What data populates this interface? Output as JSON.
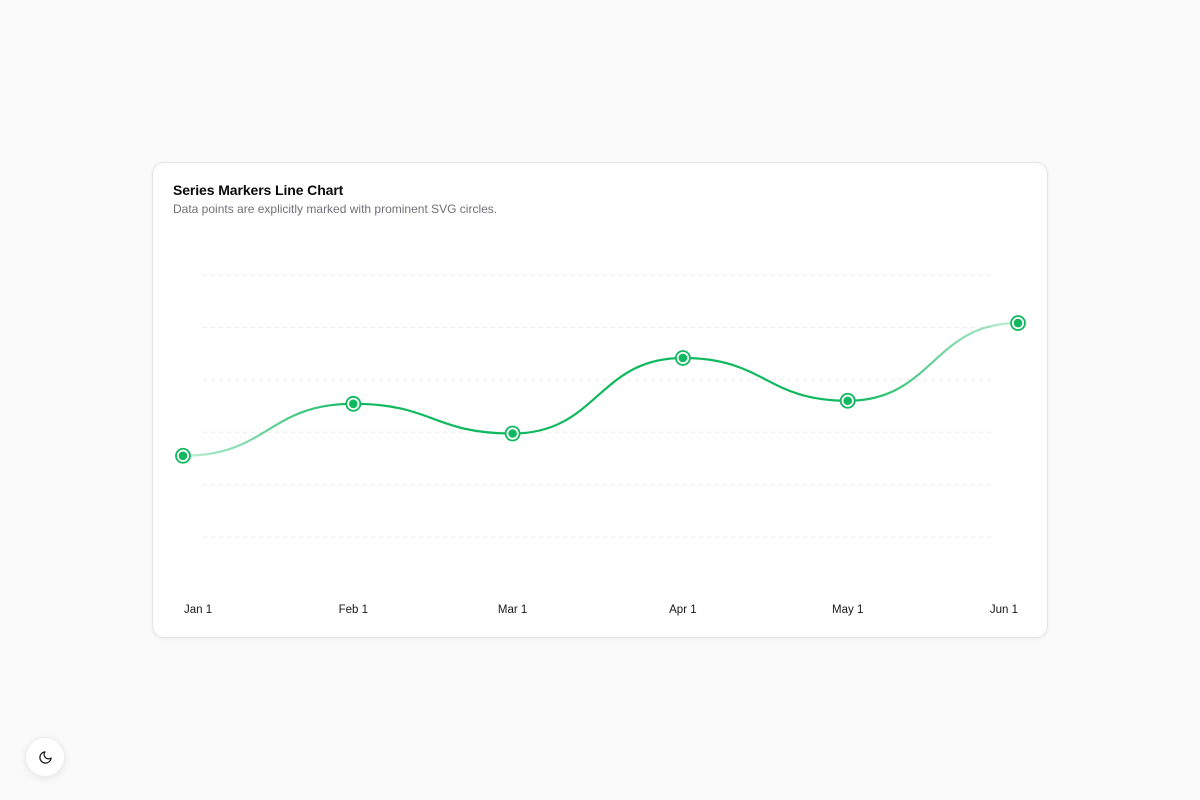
{
  "card": {
    "title": "Series Markers Line Chart",
    "subtitle": "Data points are explicitly marked with prominent SVG circles."
  },
  "theme_toggle": {
    "icon": "moon-icon"
  },
  "colors": {
    "accent": "#10b95f",
    "grid": "#e4e4e7",
    "tick_text": "#18181b"
  },
  "chart_data": {
    "type": "line",
    "x": [
      "Jan 1",
      "Feb 1",
      "Mar 1",
      "Apr 1",
      "May 1",
      "Jun 1"
    ],
    "x_dates": [
      "2024-01-01",
      "2024-02-01",
      "2024-03-01",
      "2024-04-01",
      "2024-05-01",
      "2024-06-01"
    ],
    "series": [
      {
        "values": [
          186,
          305,
          237,
          410,
          312,
          490
        ]
      }
    ],
    "ylim": [
      0,
      600
    ],
    "grid": true,
    "markers": true,
    "title": "",
    "xlabel": "",
    "ylabel": ""
  }
}
